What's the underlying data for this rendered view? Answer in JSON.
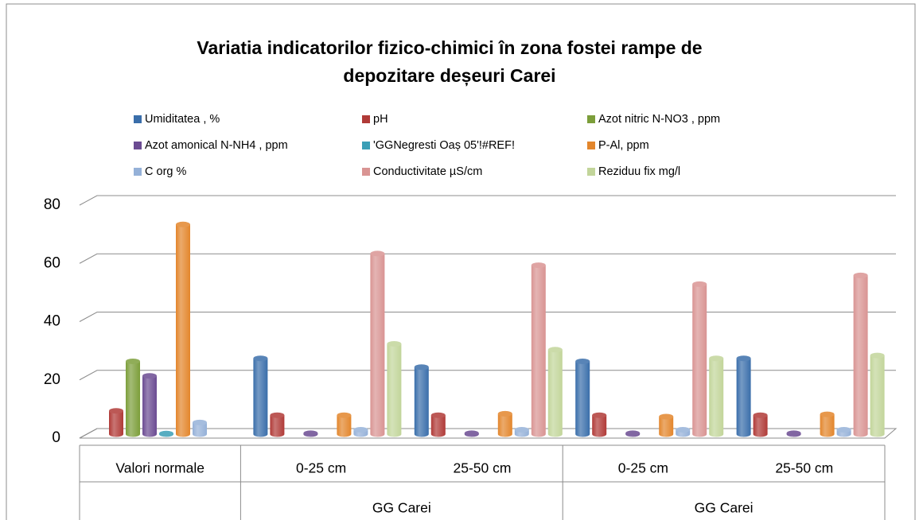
{
  "chart_data": {
    "type": "bar",
    "title": [
      "Variatia indicatorilor fizico-chimici în zona fostei rampe de",
      "depozitare deșeuri Carei"
    ],
    "categories": [
      "Valori normale",
      "0-25 cm",
      "25-50 cm",
      "0-25 cm",
      "25-50 cm"
    ],
    "category_groups": [
      null,
      "GG Carei",
      "GG Carei",
      "GG Carei",
      "GG Carei"
    ],
    "category_group_starts": [
      false,
      true,
      false,
      true,
      false
    ],
    "series": [
      {
        "name": "Umiditatea , %",
        "color": "#3a6eaa",
        "values": [
          null,
          26,
          23,
          25,
          26
        ]
      },
      {
        "name": "pH",
        "color": "#b03a37",
        "values": [
          8,
          6.5,
          6.5,
          6.5,
          6.5
        ]
      },
      {
        "name": "Azot nitric N-NO3 , ppm",
        "color": "#7c9e3a",
        "values": [
          25,
          null,
          null,
          null,
          null
        ]
      },
      {
        "name": "Azot amonical N-NH4 , ppm",
        "color": "#6b4b92",
        "values": [
          20,
          0.3,
          0.3,
          0.3,
          0.3
        ]
      },
      {
        "name": "'GGNegresti Oaș 05'!#REF!",
        "color": "#3a9fb6",
        "values": [
          0.2,
          null,
          null,
          null,
          null
        ]
      },
      {
        "name": "P-Al, ppm",
        "color": "#e3862c",
        "values": [
          72,
          6.5,
          7,
          6,
          6.8
        ]
      },
      {
        "name": "C org %",
        "color": "#95b1d8",
        "values": [
          4,
          1.5,
          1.5,
          1.5,
          1.5
        ]
      },
      {
        "name": "Conductivitate µS/cm",
        "color": "#d99493",
        "values": [
          null,
          62,
          58,
          51.5,
          54.5
        ]
      },
      {
        "name": "Reziduu fix mg/l",
        "color": "#c2d59a",
        "values": [
          null,
          31,
          29,
          26,
          27
        ]
      }
    ],
    "ylim": [
      0,
      80
    ],
    "yticks": [
      0,
      20,
      40,
      60,
      80
    ],
    "grid": true
  }
}
